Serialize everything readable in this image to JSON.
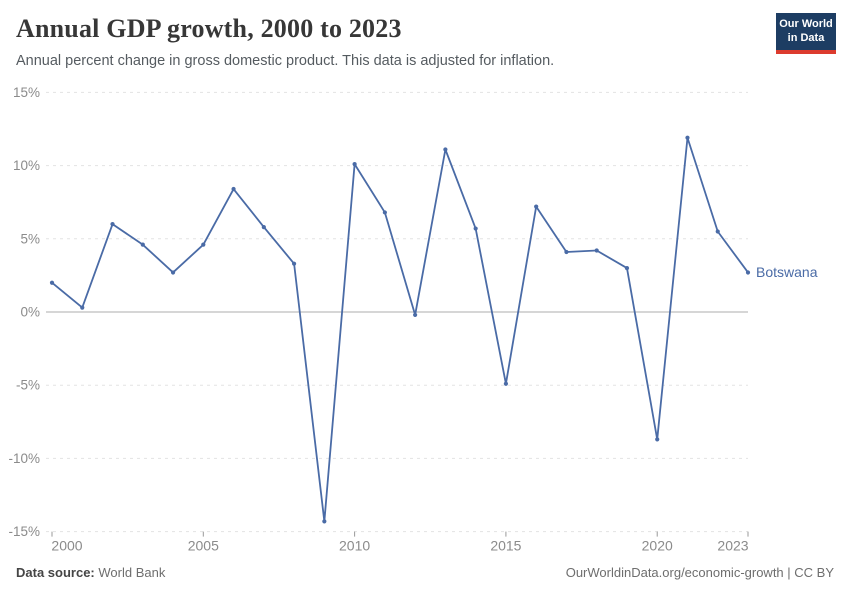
{
  "header": {
    "title": "Annual GDP growth, 2000 to 2023",
    "subtitle": "Annual percent change in gross domestic product. This data is adjusted for inflation.",
    "logo": {
      "line1": "Our World",
      "line2": "in Data",
      "bg_color": "#1d3d63",
      "bar_color": "#dc3b2e"
    }
  },
  "chart_data": {
    "type": "line",
    "title": "Annual GDP growth, 2000 to 2023",
    "xlabel": "",
    "ylabel": "",
    "xlim": [
      2000,
      2023
    ],
    "ylim": [
      -15,
      15
    ],
    "grid": "horizontal-dashed",
    "legend_position": "end-of-line-label",
    "unit": "%",
    "x_ticks": [
      2000,
      2005,
      2010,
      2015,
      2020,
      2023
    ],
    "y_ticks": [
      "15%",
      "10%",
      "5%",
      "0%",
      "-5%",
      "-10%",
      "-15%"
    ],
    "y_tick_values": [
      15,
      10,
      5,
      0,
      -5,
      -10,
      -15
    ],
    "series": [
      {
        "name": "Botswana",
        "color": "#4a6ba6",
        "x": [
          2000,
          2001,
          2002,
          2003,
          2004,
          2005,
          2006,
          2007,
          2008,
          2009,
          2010,
          2011,
          2012,
          2013,
          2014,
          2015,
          2016,
          2017,
          2018,
          2019,
          2020,
          2021,
          2022,
          2023
        ],
        "values": [
          2.0,
          0.3,
          6.0,
          4.6,
          2.7,
          4.6,
          8.4,
          5.8,
          3.3,
          -14.3,
          10.1,
          6.8,
          -0.2,
          11.1,
          5.7,
          -4.9,
          7.2,
          4.1,
          4.2,
          3.0,
          -8.7,
          11.9,
          5.5,
          2.7
        ]
      }
    ],
    "colors": {
      "grid_line": "#e3e3e3",
      "zero_line": "#adadad",
      "tick_label": "#8b8b8b",
      "tick_mark": "#999999"
    }
  },
  "footer": {
    "source_label": "Data source:",
    "source_value": "World Bank",
    "right_text": "OurWorldinData.org/economic-growth | CC BY"
  }
}
